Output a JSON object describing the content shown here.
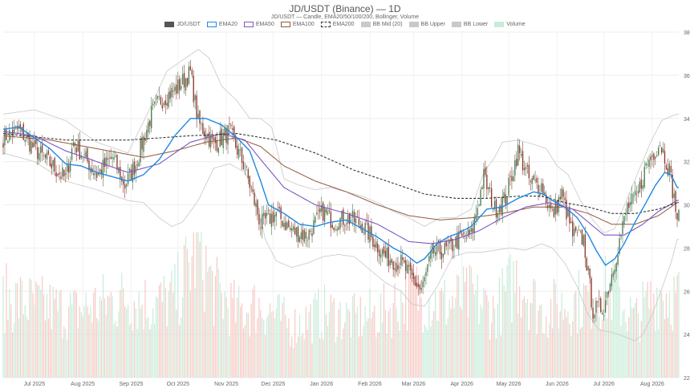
{
  "chart_data": {
    "type": "candlestick",
    "title": "JD/USDT (Binance) — 1D",
    "subtitle": "JD/USDT — Candle, EMA20/50/100/200, Bollinger, Volume",
    "legend": [
      {
        "label": "JD/USDT",
        "color": "#555555",
        "style": "fill"
      },
      {
        "label": "EMA20",
        "color": "#1e88e5",
        "style": "line"
      },
      {
        "label": "EMA50",
        "color": "#7e57c2",
        "style": "line"
      },
      {
        "label": "EMA100",
        "color": "#8d5a3c",
        "style": "line"
      },
      {
        "label": "EMA200",
        "color": "#333333",
        "style": "dash"
      },
      {
        "label": "BB Mid (20)",
        "color": "#c9c9c9",
        "style": "fill"
      },
      {
        "label": "BB Upper",
        "color": "#c9c9c9",
        "style": "fill"
      },
      {
        "label": "BB Lower",
        "color": "#c9c9c9",
        "style": "fill"
      },
      {
        "label": "Volume",
        "color": "#c8ecd9",
        "style": "fill"
      }
    ],
    "x_ticks": [
      "Jul 2025",
      "Aug 2025",
      "Sep 2025",
      "Oct 2025",
      "Nov 2025",
      "Dec 2025",
      "Jan 2026",
      "Feb 2026",
      "Mar 2026",
      "Apr 2026",
      "May 2026",
      "Jun 2026",
      "Jul 2026",
      "Aug 2026"
    ],
    "x_tick_days": [
      20,
      51,
      82,
      112,
      143,
      173,
      204,
      235,
      263,
      294,
      324,
      355,
      385,
      416
    ],
    "x_range": [
      0,
      433
    ],
    "y_ticks": [
      22,
      24,
      26,
      28,
      30,
      32,
      34,
      36,
      38
    ],
    "ylim": [
      22,
      38
    ],
    "grid": true,
    "up_color": "#4a7a52",
    "down_color": "#8b3a2e",
    "volume_up_color": "#c8ecd9",
    "volume_down_color": "#f7c9c4",
    "anchors": {
      "price": [
        [
          0,
          33.1
        ],
        [
          10,
          33.5
        ],
        [
          20,
          32.6
        ],
        [
          30,
          31.9
        ],
        [
          40,
          31.2
        ],
        [
          45,
          32.9
        ],
        [
          50,
          32.4
        ],
        [
          60,
          31.4
        ],
        [
          70,
          32.2
        ],
        [
          78,
          30.9
        ],
        [
          85,
          31.9
        ],
        [
          95,
          34.2
        ],
        [
          100,
          34.8
        ],
        [
          110,
          35.3
        ],
        [
          120,
          36.1
        ],
        [
          125,
          33.8
        ],
        [
          135,
          32.8
        ],
        [
          145,
          33.4
        ],
        [
          155,
          31.7
        ],
        [
          160,
          30.4
        ],
        [
          165,
          29.1
        ],
        [
          175,
          29.6
        ],
        [
          185,
          28.8
        ],
        [
          195,
          28.6
        ],
        [
          205,
          29.7
        ],
        [
          212,
          29.2
        ],
        [
          220,
          29.4
        ],
        [
          230,
          29.1
        ],
        [
          238,
          28.3
        ],
        [
          245,
          27.6
        ],
        [
          255,
          27.3
        ],
        [
          262,
          26.6
        ],
        [
          268,
          26.0
        ],
        [
          275,
          27.8
        ],
        [
          285,
          27.9
        ],
        [
          292,
          28.4
        ],
        [
          300,
          28.6
        ],
        [
          308,
          31.3
        ],
        [
          315,
          29.8
        ],
        [
          322,
          30.3
        ],
        [
          330,
          32.5
        ],
        [
          338,
          31.0
        ],
        [
          345,
          30.9
        ],
        [
          352,
          29.5
        ],
        [
          358,
          30.5
        ],
        [
          365,
          28.6
        ],
        [
          372,
          28.4
        ],
        [
          378,
          25.1
        ],
        [
          385,
          25.3
        ],
        [
          392,
          27.4
        ],
        [
          400,
          29.9
        ],
        [
          406,
          30.3
        ],
        [
          412,
          31.8
        ],
        [
          416,
          32.3
        ],
        [
          421,
          32.9
        ],
        [
          427,
          31.6
        ],
        [
          432,
          29.4
        ]
      ],
      "ema20": [
        [
          0,
          33.5
        ],
        [
          10,
          33.6
        ],
        [
          20,
          33.1
        ],
        [
          30,
          32.6
        ],
        [
          40,
          31.9
        ],
        [
          50,
          31.8
        ],
        [
          60,
          31.5
        ],
        [
          70,
          31.3
        ],
        [
          80,
          31.1
        ],
        [
          90,
          31.4
        ],
        [
          100,
          32.1
        ],
        [
          110,
          33.2
        ],
        [
          120,
          34.0
        ],
        [
          130,
          34.0
        ],
        [
          140,
          33.7
        ],
        [
          150,
          33.1
        ],
        [
          158,
          32.5
        ],
        [
          165,
          31.1
        ],
        [
          170,
          30.0
        ],
        [
          180,
          29.6
        ],
        [
          190,
          29.1
        ],
        [
          200,
          29.0
        ],
        [
          210,
          29.2
        ],
        [
          220,
          29.3
        ],
        [
          230,
          28.9
        ],
        [
          240,
          28.5
        ],
        [
          250,
          28.0
        ],
        [
          258,
          27.7
        ],
        [
          265,
          27.3
        ],
        [
          270,
          27.5
        ],
        [
          278,
          28.2
        ],
        [
          285,
          28.5
        ],
        [
          292,
          28.7
        ],
        [
          300,
          29.0
        ],
        [
          310,
          29.8
        ],
        [
          320,
          29.9
        ],
        [
          330,
          30.3
        ],
        [
          340,
          30.6
        ],
        [
          346,
          30.5
        ],
        [
          352,
          30.2
        ],
        [
          360,
          29.9
        ],
        [
          368,
          29.4
        ],
        [
          375,
          28.6
        ],
        [
          380,
          27.9
        ],
        [
          386,
          27.2
        ],
        [
          392,
          27.5
        ],
        [
          398,
          28.2
        ],
        [
          405,
          29.2
        ],
        [
          412,
          30.1
        ],
        [
          418,
          30.9
        ],
        [
          424,
          31.5
        ],
        [
          428,
          31.4
        ],
        [
          432,
          30.8
        ]
      ],
      "ema50": [
        [
          0,
          33.4
        ],
        [
          20,
          33.2
        ],
        [
          40,
          32.5
        ],
        [
          60,
          32.0
        ],
        [
          80,
          31.5
        ],
        [
          100,
          31.9
        ],
        [
          120,
          32.9
        ],
        [
          140,
          33.3
        ],
        [
          155,
          33.0
        ],
        [
          165,
          32.1
        ],
        [
          180,
          30.8
        ],
        [
          200,
          30.0
        ],
        [
          220,
          29.6
        ],
        [
          240,
          29.1
        ],
        [
          260,
          28.3
        ],
        [
          275,
          28.2
        ],
        [
          290,
          28.4
        ],
        [
          305,
          28.8
        ],
        [
          320,
          29.4
        ],
        [
          335,
          29.9
        ],
        [
          350,
          30.1
        ],
        [
          365,
          29.8
        ],
        [
          375,
          29.2
        ],
        [
          385,
          28.6
        ],
        [
          398,
          28.6
        ],
        [
          410,
          29.1
        ],
        [
          420,
          29.7
        ],
        [
          432,
          30.2
        ]
      ],
      "ema100": [
        [
          0,
          33.2
        ],
        [
          30,
          33.0
        ],
        [
          60,
          32.6
        ],
        [
          90,
          32.2
        ],
        [
          110,
          32.5
        ],
        [
          130,
          32.9
        ],
        [
          150,
          33.1
        ],
        [
          165,
          32.7
        ],
        [
          180,
          31.8
        ],
        [
          200,
          31.1
        ],
        [
          220,
          30.6
        ],
        [
          240,
          30.0
        ],
        [
          260,
          29.5
        ],
        [
          280,
          29.3
        ],
        [
          300,
          29.4
        ],
        [
          320,
          29.6
        ],
        [
          340,
          29.9
        ],
        [
          360,
          29.9
        ],
        [
          375,
          29.6
        ],
        [
          390,
          29.1
        ],
        [
          405,
          29.1
        ],
        [
          420,
          29.5
        ],
        [
          432,
          30.1
        ]
      ],
      "ema200": [
        [
          0,
          33.3
        ],
        [
          40,
          33.0
        ],
        [
          80,
          33.0
        ],
        [
          120,
          33.2
        ],
        [
          150,
          33.3
        ],
        [
          175,
          33.0
        ],
        [
          200,
          32.4
        ],
        [
          225,
          31.6
        ],
        [
          250,
          31.0
        ],
        [
          270,
          30.5
        ],
        [
          290,
          30.3
        ],
        [
          310,
          30.3
        ],
        [
          330,
          30.4
        ],
        [
          345,
          30.4
        ],
        [
          360,
          30.1
        ],
        [
          375,
          29.9
        ],
        [
          390,
          29.6
        ],
        [
          405,
          29.6
        ],
        [
          420,
          29.8
        ],
        [
          432,
          30.1
        ]
      ],
      "bb_upper": [
        [
          0,
          34.2
        ],
        [
          20,
          34.4
        ],
        [
          40,
          33.9
        ],
        [
          60,
          32.9
        ],
        [
          80,
          32.4
        ],
        [
          95,
          34.6
        ],
        [
          105,
          36.2
        ],
        [
          115,
          36.7
        ],
        [
          125,
          37.2
        ],
        [
          132,
          36.8
        ],
        [
          140,
          35.5
        ],
        [
          150,
          34.8
        ],
        [
          158,
          34.0
        ],
        [
          165,
          34.0
        ],
        [
          172,
          33.6
        ],
        [
          180,
          31.2
        ],
        [
          190,
          30.9
        ],
        [
          200,
          30.7
        ],
        [
          210,
          30.8
        ],
        [
          220,
          30.6
        ],
        [
          230,
          30.4
        ],
        [
          240,
          30.1
        ],
        [
          250,
          29.7
        ],
        [
          260,
          29.4
        ],
        [
          270,
          29.0
        ],
        [
          280,
          29.4
        ],
        [
          290,
          29.4
        ],
        [
          300,
          29.8
        ],
        [
          308,
          31.5
        ],
        [
          315,
          32.2
        ],
        [
          320,
          32.9
        ],
        [
          330,
          33.0
        ],
        [
          340,
          32.8
        ],
        [
          348,
          32.6
        ],
        [
          355,
          31.8
        ],
        [
          362,
          31.4
        ],
        [
          370,
          30.2
        ],
        [
          378,
          29.3
        ],
        [
          385,
          28.7
        ],
        [
          392,
          28.9
        ],
        [
          400,
          30.3
        ],
        [
          408,
          31.7
        ],
        [
          415,
          32.9
        ],
        [
          422,
          33.9
        ],
        [
          428,
          34.1
        ],
        [
          432,
          34.2
        ]
      ],
      "bb_lower": [
        [
          0,
          32.4
        ],
        [
          20,
          32.0
        ],
        [
          40,
          31.1
        ],
        [
          60,
          30.7
        ],
        [
          80,
          30.2
        ],
        [
          90,
          30.1
        ],
        [
          100,
          29.4
        ],
        [
          108,
          29.0
        ],
        [
          115,
          29.2
        ],
        [
          125,
          30.2
        ],
        [
          135,
          31.7
        ],
        [
          145,
          31.9
        ],
        [
          155,
          31.5
        ],
        [
          162,
          30.4
        ],
        [
          168,
          28.4
        ],
        [
          175,
          27.4
        ],
        [
          185,
          27.1
        ],
        [
          195,
          27.3
        ],
        [
          205,
          27.6
        ],
        [
          215,
          27.7
        ],
        [
          225,
          27.6
        ],
        [
          235,
          27.0
        ],
        [
          245,
          26.4
        ],
        [
          255,
          26.0
        ],
        [
          262,
          25.4
        ],
        [
          270,
          25.3
        ],
        [
          278,
          26.2
        ],
        [
          288,
          27.6
        ],
        [
          298,
          27.8
        ],
        [
          306,
          27.8
        ],
        [
          315,
          27.9
        ],
        [
          325,
          28.0
        ],
        [
          335,
          27.9
        ],
        [
          345,
          28.2
        ],
        [
          352,
          28.0
        ],
        [
          360,
          27.3
        ],
        [
          368,
          26.2
        ],
        [
          375,
          24.9
        ],
        [
          382,
          24.2
        ],
        [
          390,
          24.1
        ],
        [
          398,
          23.9
        ],
        [
          405,
          23.7
        ],
        [
          410,
          24.0
        ],
        [
          416,
          24.9
        ],
        [
          422,
          26.1
        ],
        [
          428,
          27.3
        ],
        [
          432,
          28.4
        ]
      ],
      "volume": [
        [
          0,
          0.55
        ],
        [
          20,
          0.5
        ],
        [
          45,
          0.45
        ],
        [
          60,
          0.5
        ],
        [
          80,
          0.55
        ],
        [
          95,
          0.5
        ],
        [
          110,
          0.55
        ],
        [
          125,
          0.9
        ],
        [
          135,
          0.6
        ],
        [
          150,
          0.45
        ],
        [
          165,
          0.5
        ],
        [
          185,
          0.35
        ],
        [
          205,
          0.45
        ],
        [
          225,
          0.4
        ],
        [
          245,
          0.45
        ],
        [
          262,
          0.6
        ],
        [
          280,
          0.5
        ],
        [
          300,
          0.55
        ],
        [
          315,
          0.45
        ],
        [
          330,
          0.7
        ],
        [
          345,
          0.45
        ],
        [
          360,
          0.5
        ],
        [
          375,
          0.55
        ],
        [
          390,
          0.6
        ],
        [
          405,
          0.4
        ],
        [
          420,
          0.6
        ],
        [
          432,
          0.55
        ]
      ]
    }
  }
}
